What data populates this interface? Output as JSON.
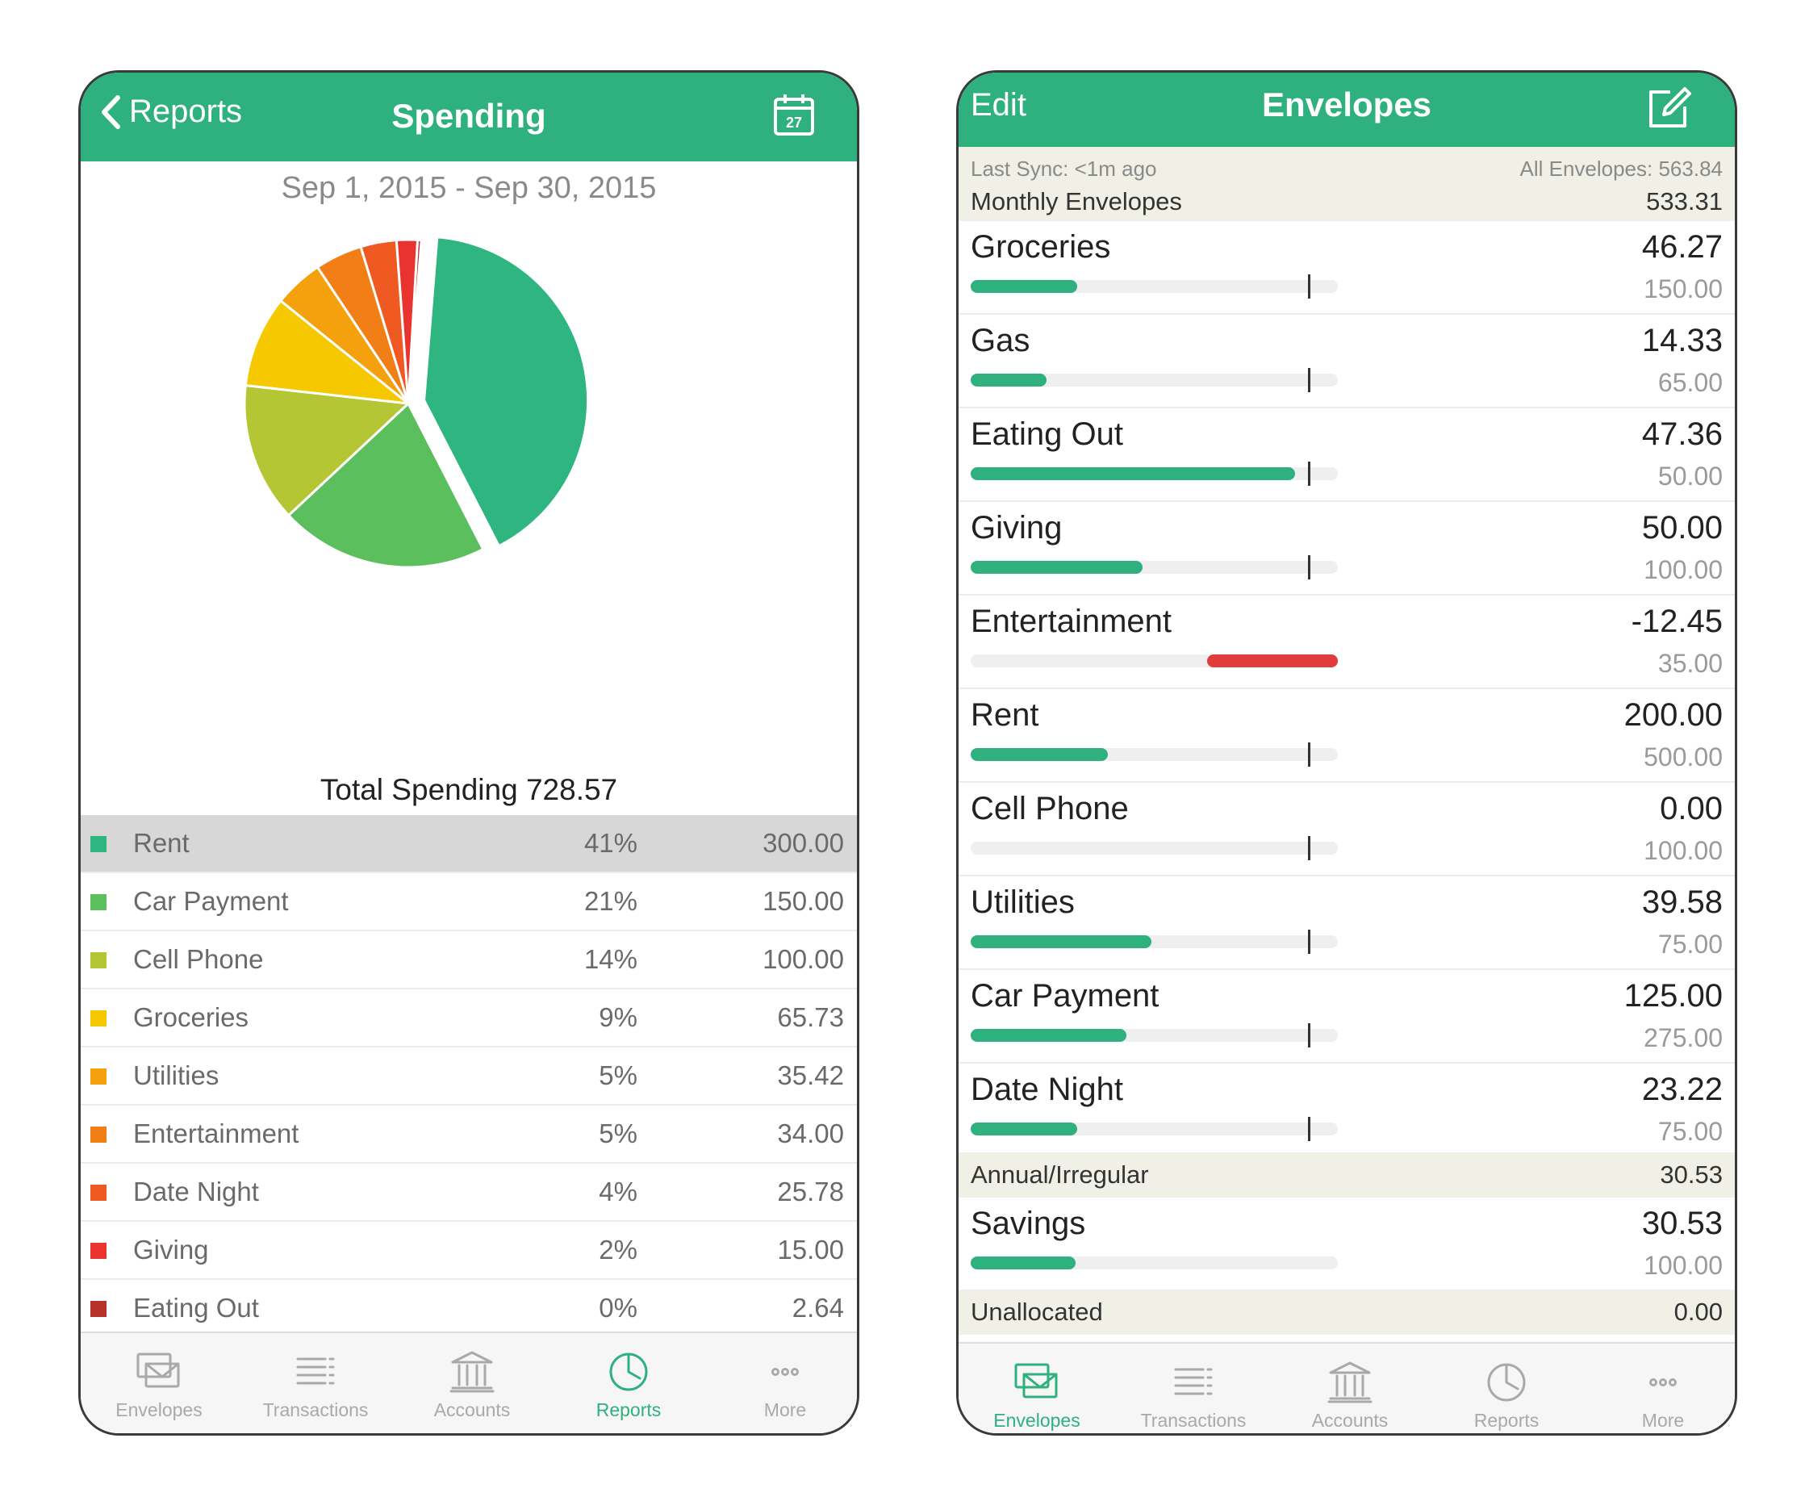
{
  "spending": {
    "back_label": "Reports",
    "title": "Spending",
    "calendar_day": "27",
    "date_range": "Sep 1, 2015 - Sep 30, 2015",
    "total_label": "Total Spending 728.57",
    "categories": [
      {
        "name": "Rent",
        "pct": "41%",
        "amount": "300.00",
        "value": 300.0,
        "color": "#2eb580",
        "selected": true
      },
      {
        "name": "Car Payment",
        "pct": "21%",
        "amount": "150.00",
        "value": 150.0,
        "color": "#5cbf5e"
      },
      {
        "name": "Cell Phone",
        "pct": "14%",
        "amount": "100.00",
        "value": 100.0,
        "color": "#b4c634"
      },
      {
        "name": "Groceries",
        "pct": "9%",
        "amount": "65.73",
        "value": 65.73,
        "color": "#f6c800"
      },
      {
        "name": "Utilities",
        "pct": "5%",
        "amount": "35.42",
        "value": 35.42,
        "color": "#f5a10d"
      },
      {
        "name": "Entertainment",
        "pct": "5%",
        "amount": "34.00",
        "value": 34.0,
        "color": "#f27f16"
      },
      {
        "name": "Date Night",
        "pct": "4%",
        "amount": "25.78",
        "value": 25.78,
        "color": "#ef5a22"
      },
      {
        "name": "Giving",
        "pct": "2%",
        "amount": "15.00",
        "value": 15.0,
        "color": "#e8332f"
      },
      {
        "name": "Eating Out",
        "pct": "0%",
        "amount": "2.64",
        "value": 2.64,
        "color": "#b8322c"
      }
    ],
    "tabs": [
      {
        "label": "Envelopes",
        "icon": "envelopes-icon",
        "active": false
      },
      {
        "label": "Transactions",
        "icon": "transactions-icon",
        "active": false
      },
      {
        "label": "Accounts",
        "icon": "accounts-icon",
        "active": false
      },
      {
        "label": "Reports",
        "icon": "reports-icon",
        "active": true
      },
      {
        "label": "More",
        "icon": "more-icon",
        "active": false
      }
    ]
  },
  "envelopes": {
    "edit_label": "Edit",
    "title": "Envelopes",
    "last_sync": "Last Sync: <1m ago",
    "all_envelopes": "All Envelopes: 563.84",
    "monthly_label": "Monthly Envelopes",
    "monthly_total": "533.31",
    "monthly": [
      {
        "name": "Groceries",
        "available": "46.27",
        "budget": "150.00",
        "fill": 0.31
      },
      {
        "name": "Gas",
        "available": "14.33",
        "budget": "65.00",
        "fill": 0.22
      },
      {
        "name": "Eating Out",
        "available": "47.36",
        "budget": "50.00",
        "fill": 0.947
      },
      {
        "name": "Giving",
        "available": "50.00",
        "budget": "100.00",
        "fill": 0.5
      },
      {
        "name": "Entertainment",
        "available": "-12.45",
        "budget": "35.00",
        "fill": -0.356
      },
      {
        "name": "Rent",
        "available": "200.00",
        "budget": "500.00",
        "fill": 0.4
      },
      {
        "name": "Cell Phone",
        "available": "0.00",
        "budget": "100.00",
        "fill": 0
      },
      {
        "name": "Utilities",
        "available": "39.58",
        "budget": "75.00",
        "fill": 0.528
      },
      {
        "name": "Car Payment",
        "available": "125.00",
        "budget": "275.00",
        "fill": 0.455
      },
      {
        "name": "Date Night",
        "available": "23.22",
        "budget": "75.00",
        "fill": 0.31
      }
    ],
    "annual_label": "Annual/Irregular",
    "annual_total": "30.53",
    "annual": [
      {
        "name": "Savings",
        "available": "30.53",
        "budget": "100.00",
        "fill": 0.305
      }
    ],
    "unallocated_label": "Unallocated",
    "unallocated_total": "0.00",
    "tabs": [
      {
        "label": "Envelopes",
        "icon": "envelopes-icon",
        "active": true
      },
      {
        "label": "Transactions",
        "icon": "transactions-icon",
        "active": false
      },
      {
        "label": "Accounts",
        "icon": "accounts-icon",
        "active": false
      },
      {
        "label": "Reports",
        "icon": "reports-icon",
        "active": false
      },
      {
        "label": "More",
        "icon": "more-icon",
        "active": false
      }
    ]
  }
}
